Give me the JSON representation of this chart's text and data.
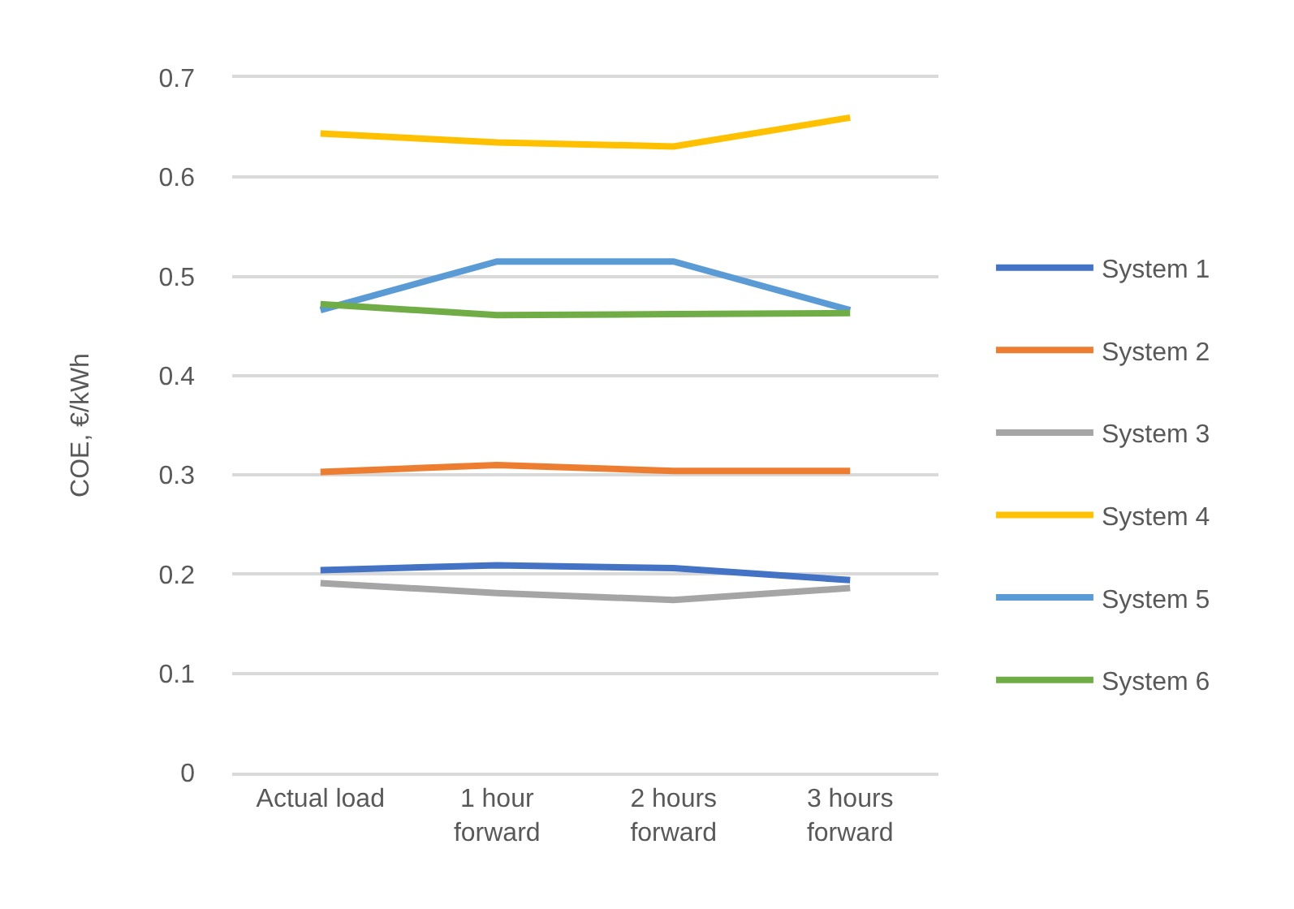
{
  "chart_data": {
    "type": "line",
    "ylabel": "COE, €/kWh",
    "categories": [
      "Actual load",
      "1 hour forward",
      "2 hours forward",
      "3 hours forward"
    ],
    "series": [
      {
        "name": "System 1",
        "color": "#4472c4",
        "values": [
          0.204,
          0.209,
          0.206,
          0.194
        ]
      },
      {
        "name": "System 2",
        "color": "#ed7d31",
        "values": [
          0.303,
          0.31,
          0.304,
          0.304
        ]
      },
      {
        "name": "System 3",
        "color": "#a5a5a5",
        "values": [
          0.191,
          0.181,
          0.174,
          0.186
        ]
      },
      {
        "name": "System 4",
        "color": "#ffc000",
        "values": [
          0.644,
          0.635,
          0.631,
          0.66
        ]
      },
      {
        "name": "System 5",
        "color": "#5b9bd5",
        "values": [
          0.466,
          0.515,
          0.515,
          0.466
        ]
      },
      {
        "name": "System 6",
        "color": "#70ad47",
        "values": [
          0.472,
          0.461,
          0.462,
          0.463
        ]
      }
    ],
    "ylim": [
      0,
      0.7
    ],
    "yticks": [
      0,
      0.1,
      0.2,
      0.3,
      0.4,
      0.5,
      0.6,
      0.7
    ],
    "grid": "y",
    "legend": "right",
    "marker": "none",
    "line_style": "solid"
  }
}
